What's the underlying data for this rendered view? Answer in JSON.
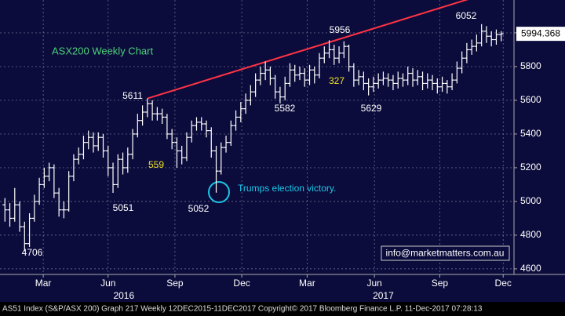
{
  "chart_data": {
    "type": "ohlc",
    "title": "ASX200 Weekly Chart",
    "x": [
      0,
      1,
      2,
      3,
      4,
      5,
      6,
      7,
      8,
      9,
      10,
      11,
      12,
      13,
      14,
      15,
      16,
      17,
      18,
      19,
      20,
      21,
      22,
      23,
      24,
      25,
      26,
      27,
      28,
      29,
      30,
      31,
      32,
      33,
      34,
      35,
      36,
      37,
      38,
      39,
      40,
      41,
      42,
      43,
      44,
      45,
      46,
      47,
      48,
      49,
      50,
      51,
      52,
      53,
      54,
      55,
      56,
      57,
      58,
      59,
      60,
      61,
      62,
      63,
      64,
      65,
      66,
      67,
      68,
      69,
      70,
      71,
      72,
      73,
      74,
      75,
      76,
      77,
      78,
      79,
      80,
      81,
      82,
      83,
      84,
      85,
      86,
      87,
      88,
      89,
      90,
      91,
      92,
      93,
      94,
      95,
      96,
      97,
      98,
      99,
      100,
      101
    ],
    "open": [
      4980,
      4950,
      4900,
      4980,
      4850,
      4750,
      4900,
      5000,
      5100,
      5150,
      5200,
      5050,
      4950,
      4950,
      5150,
      5250,
      5280,
      5350,
      5380,
      5330,
      5380,
      5300,
      5200,
      5100,
      5250,
      5200,
      5280,
      5400,
      5480,
      5530,
      5580,
      5520,
      5520,
      5500,
      5400,
      5350,
      5300,
      5260,
      5380,
      5450,
      5470,
      5460,
      5420,
      5300,
      5180,
      5320,
      5350,
      5450,
      5500,
      5550,
      5600,
      5650,
      5720,
      5760,
      5780,
      5730,
      5650,
      5620,
      5700,
      5780,
      5750,
      5760,
      5720,
      5780,
      5750,
      5850,
      5880,
      5900,
      5850,
      5880,
      5920,
      5800,
      5720,
      5740,
      5700,
      5680,
      5700,
      5720,
      5730,
      5720,
      5700,
      5730,
      5720,
      5760,
      5720,
      5740,
      5700,
      5720,
      5700,
      5680,
      5700,
      5680,
      5720,
      5790,
      5850,
      5900,
      5920,
      5940,
      6010,
      5980,
      5960,
      5990
    ],
    "high": [
      5020,
      4990,
      5080,
      5000,
      4880,
      4930,
      5040,
      5140,
      5200,
      5230,
      5220,
      5080,
      5000,
      5180,
      5280,
      5320,
      5390,
      5420,
      5410,
      5410,
      5400,
      5330,
      5230,
      5280,
      5290,
      5320,
      5430,
      5520,
      5570,
      5611,
      5600,
      5560,
      5550,
      5520,
      5430,
      5380,
      5330,
      5410,
      5480,
      5500,
      5500,
      5480,
      5440,
      5330,
      5350,
      5390,
      5480,
      5540,
      5590,
      5640,
      5690,
      5760,
      5800,
      5830,
      5800,
      5750,
      5680,
      5740,
      5820,
      5810,
      5800,
      5790,
      5810,
      5800,
      5880,
      5920,
      5956,
      5930,
      5920,
      5950,
      5930,
      5820,
      5780,
      5770,
      5730,
      5740,
      5760,
      5770,
      5760,
      5750,
      5770,
      5760,
      5800,
      5790,
      5780,
      5770,
      5760,
      5750,
      5730,
      5740,
      5720,
      5760,
      5830,
      5890,
      5940,
      5960,
      5990,
      6052,
      6040,
      6010,
      6020,
      6010
    ],
    "low": [
      4880,
      4850,
      4880,
      4820,
      4706,
      4730,
      4880,
      4980,
      5080,
      5120,
      5020,
      4910,
      4900,
      4940,
      5120,
      5220,
      5250,
      5310,
      5290,
      5300,
      5260,
      5150,
      5051,
      5080,
      5160,
      5170,
      5250,
      5380,
      5450,
      5500,
      5480,
      5480,
      5460,
      5370,
      5310,
      5200,
      5220,
      5240,
      5350,
      5420,
      5420,
      5380,
      5260,
      5052,
      5160,
      5290,
      5330,
      5420,
      5470,
      5520,
      5570,
      5620,
      5690,
      5720,
      5690,
      5610,
      5582,
      5600,
      5680,
      5710,
      5720,
      5680,
      5690,
      5700,
      5730,
      5820,
      5850,
      5810,
      5820,
      5850,
      5770,
      5680,
      5690,
      5660,
      5629,
      5650,
      5670,
      5690,
      5680,
      5660,
      5670,
      5680,
      5690,
      5680,
      5690,
      5660,
      5670,
      5660,
      5640,
      5650,
      5640,
      5660,
      5700,
      5760,
      5820,
      5870,
      5890,
      5920,
      5940,
      5920,
      5930,
      5950
    ],
    "close": [
      4950,
      4900,
      4980,
      4850,
      4750,
      4900,
      5000,
      5100,
      5150,
      5200,
      5050,
      4950,
      4950,
      5150,
      5250,
      5280,
      5350,
      5380,
      5330,
      5380,
      5300,
      5200,
      5100,
      5250,
      5200,
      5280,
      5400,
      5480,
      5530,
      5580,
      5520,
      5520,
      5500,
      5400,
      5350,
      5300,
      5260,
      5380,
      5450,
      5470,
      5460,
      5420,
      5300,
      5180,
      5320,
      5350,
      5450,
      5500,
      5550,
      5600,
      5650,
      5720,
      5760,
      5780,
      5730,
      5650,
      5620,
      5700,
      5780,
      5750,
      5760,
      5720,
      5780,
      5750,
      5850,
      5880,
      5900,
      5850,
      5880,
      5920,
      5800,
      5720,
      5740,
      5700,
      5680,
      5700,
      5720,
      5730,
      5720,
      5700,
      5730,
      5720,
      5760,
      5720,
      5740,
      5700,
      5720,
      5700,
      5680,
      5700,
      5680,
      5720,
      5790,
      5850,
      5900,
      5920,
      5940,
      6010,
      5980,
      5960,
      5990,
      5994.368
    ],
    "color": "#ffffff",
    "ylim": [
      4567,
      6195
    ],
    "yticks": [
      4600,
      4800,
      5000,
      5200,
      5400,
      5600,
      5800,
      6000
    ],
    "xlim": [
      -1,
      103.6
    ],
    "xticks": [
      {
        "value": 7.8,
        "label": "Mar"
      },
      {
        "value": 21,
        "label": "Jun"
      },
      {
        "value": 34.6,
        "label": "Sep"
      },
      {
        "value": 48.2,
        "label": "Dec"
      },
      {
        "value": 61.5,
        "label": "Mar"
      },
      {
        "value": 75.2,
        "label": "Jun"
      },
      {
        "value": 88.5,
        "label": "Sep"
      },
      {
        "value": 101.4,
        "label": "Dec"
      }
    ],
    "year_ticks": [
      {
        "value": 24.2,
        "label": "2016"
      },
      {
        "value": 77,
        "label": "2017"
      }
    ],
    "grid": true,
    "trendline": {
      "color": "#ff3344",
      "x": [
        29,
        96
      ],
      "y": [
        5611,
        6215
      ]
    },
    "annotations": [
      "4706",
      "5051",
      "5611",
      "559",
      "5052",
      "5582",
      "5956",
      "327",
      "5629",
      "6052",
      "Trumps election victory."
    ],
    "contact": "info@marketmatters.com.au",
    "footer": "AS51 Index (S&P/ASX 200) Graph 217   Weekly 12DEC2015-11DEC2017     Copyright© 2017 Bloomberg Finance L.P.     11-Dec-2017 07:28:13"
  }
}
